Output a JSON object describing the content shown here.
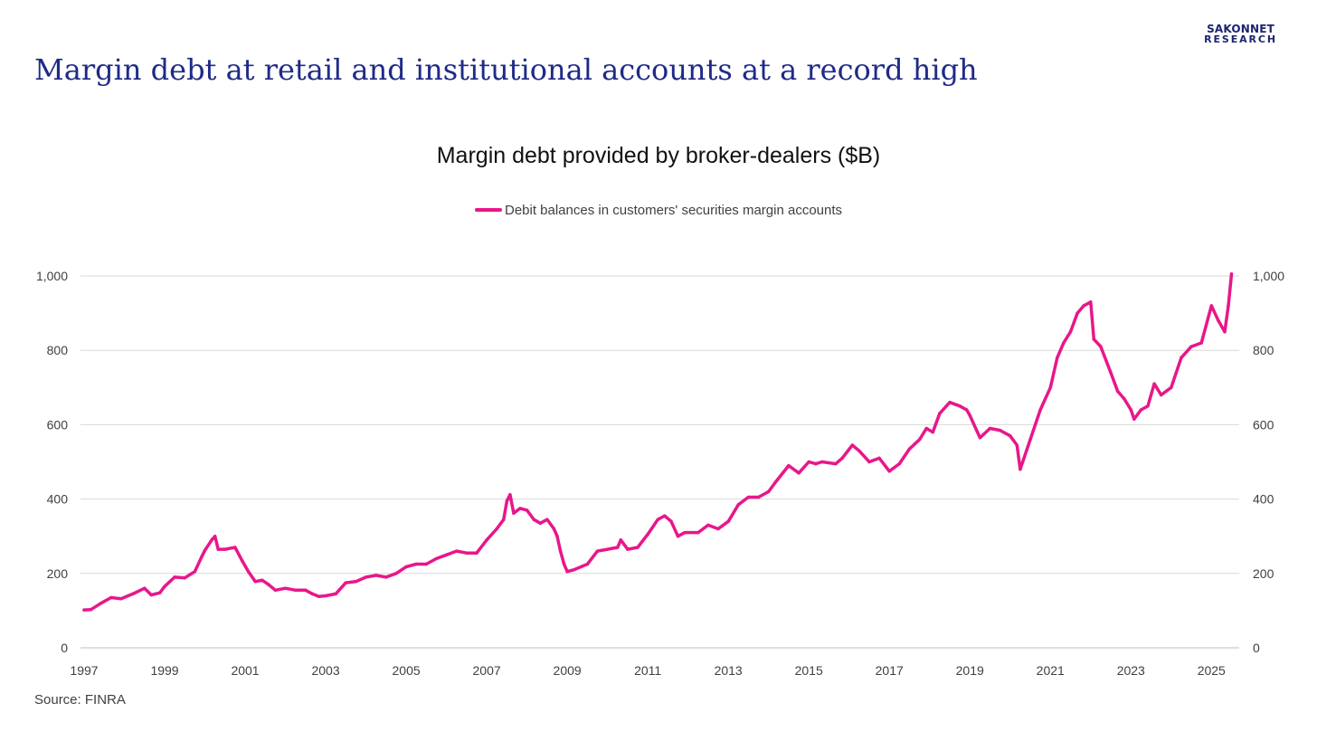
{
  "branding": {
    "logo_line1": "SAKONNET",
    "logo_line2": "RESEARCH",
    "logo_color": "#1c2470"
  },
  "headline": "Margin debt at retail and institutional accounts at a record high",
  "source": "Source: FINRA",
  "colors": {
    "title": "#1f2a87",
    "series": "#e8178a",
    "grid": "#d9d9d9",
    "text": "#404040"
  },
  "chart_data": {
    "type": "line",
    "title": "Margin debt provided by broker-dealers ($B)",
    "legend_position": "top-center",
    "grid": true,
    "xlim": [
      1997,
      2025.6
    ],
    "ylim": [
      0,
      1000
    ],
    "x_ticks": [
      "1997",
      "1999",
      "2001",
      "2003",
      "2005",
      "2007",
      "2009",
      "2011",
      "2013",
      "2015",
      "2017",
      "2019",
      "2021",
      "2023",
      "2025"
    ],
    "y_ticks_left": [
      "0",
      "200",
      "400",
      "600",
      "800",
      "1,000"
    ],
    "y_ticks_right": [
      "0",
      "200",
      "400",
      "600",
      "800",
      "1,000"
    ],
    "series": [
      {
        "name": "Debit balances in customers' securities margin accounts",
        "x": [
          1997.0,
          1997.17,
          1997.42,
          1997.67,
          1997.92,
          1998.25,
          1998.5,
          1998.67,
          1998.88,
          1999.0,
          1999.25,
          1999.5,
          1999.75,
          1999.92,
          2000.0,
          2000.17,
          2000.25,
          2000.33,
          2000.5,
          2000.75,
          2000.92,
          2001.08,
          2001.25,
          2001.42,
          2001.58,
          2001.75,
          2002.0,
          2002.25,
          2002.5,
          2002.67,
          2002.83,
          2003.0,
          2003.25,
          2003.5,
          2003.75,
          2004.0,
          2004.25,
          2004.5,
          2004.75,
          2005.0,
          2005.25,
          2005.5,
          2005.75,
          2006.0,
          2006.25,
          2006.5,
          2006.75,
          2007.0,
          2007.25,
          2007.42,
          2007.5,
          2007.58,
          2007.67,
          2007.83,
          2008.0,
          2008.17,
          2008.33,
          2008.5,
          2008.67,
          2008.75,
          2008.83,
          2008.92,
          2009.0,
          2009.17,
          2009.5,
          2009.75,
          2010.0,
          2010.25,
          2010.33,
          2010.5,
          2010.75,
          2011.0,
          2011.25,
          2011.42,
          2011.58,
          2011.75,
          2011.92,
          2012.25,
          2012.5,
          2012.75,
          2013.0,
          2013.25,
          2013.5,
          2013.75,
          2014.0,
          2014.17,
          2014.5,
          2014.75,
          2015.0,
          2015.17,
          2015.33,
          2015.67,
          2015.83,
          2016.08,
          2016.25,
          2016.5,
          2016.75,
          2017.0,
          2017.25,
          2017.5,
          2017.75,
          2017.92,
          2018.08,
          2018.25,
          2018.5,
          2018.75,
          2018.92,
          2019.0,
          2019.25,
          2019.5,
          2019.75,
          2020.0,
          2020.17,
          2020.25,
          2020.5,
          2020.75,
          2021.0,
          2021.17,
          2021.33,
          2021.5,
          2021.67,
          2021.83,
          2022.0,
          2022.08,
          2022.25,
          2022.5,
          2022.67,
          2022.83,
          2023.0,
          2023.08,
          2023.25,
          2023.42,
          2023.58,
          2023.75,
          2024.0,
          2024.25,
          2024.5,
          2024.75,
          2025.0,
          2025.17,
          2025.33,
          2025.42,
          2025.5
        ],
        "values": [
          102,
          103,
          120,
          135,
          132,
          147,
          160,
          142,
          148,
          165,
          190,
          188,
          205,
          245,
          262,
          290,
          300,
          265,
          265,
          270,
          235,
          205,
          178,
          182,
          170,
          155,
          160,
          155,
          155,
          145,
          138,
          140,
          145,
          175,
          178,
          190,
          195,
          190,
          200,
          218,
          225,
          225,
          240,
          250,
          260,
          255,
          255,
          290,
          320,
          345,
          395,
          412,
          362,
          375,
          370,
          345,
          335,
          345,
          320,
          300,
          260,
          225,
          205,
          210,
          225,
          260,
          265,
          270,
          290,
          265,
          270,
          305,
          345,
          355,
          340,
          300,
          310,
          310,
          330,
          320,
          340,
          385,
          405,
          405,
          420,
          445,
          490,
          470,
          500,
          495,
          500,
          495,
          510,
          545,
          530,
          500,
          510,
          475,
          495,
          535,
          560,
          590,
          580,
          630,
          660,
          650,
          640,
          625,
          565,
          590,
          585,
          570,
          545,
          480,
          560,
          640,
          700,
          780,
          820,
          850,
          900,
          920,
          930,
          830,
          810,
          740,
          690,
          670,
          640,
          615,
          640,
          650,
          710,
          680,
          700,
          780,
          810,
          820,
          920,
          880,
          850,
          920,
          1005
        ]
      }
    ]
  }
}
